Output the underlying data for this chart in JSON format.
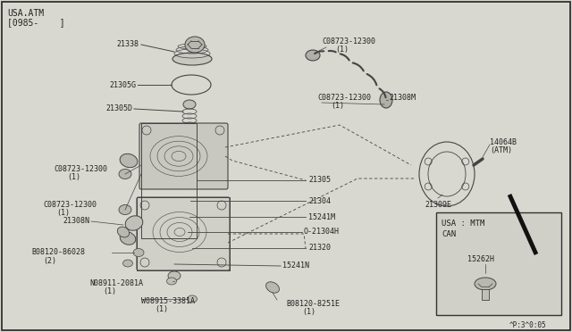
{
  "bg_color": "#d8d8d0",
  "border_color": "#000000",
  "line_color": "#444444",
  "text_color": "#222222",
  "header_line1": "USA.ATM",
  "header_line2": "[0985-    ]",
  "footer_text": "^P:3^0:05",
  "inset_label1": "USA : MTM",
  "inset_label2": "CAN",
  "inset_part": "15262H"
}
